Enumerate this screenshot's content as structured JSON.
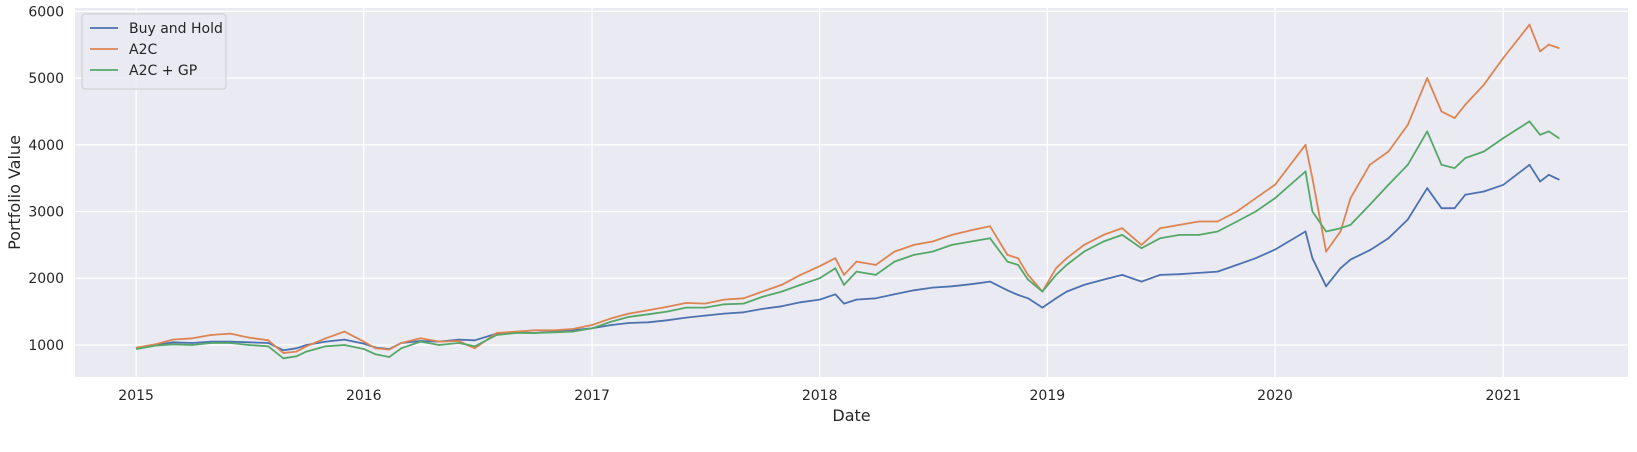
{
  "chart_data": {
    "type": "line",
    "title": "",
    "xlabel": "Date",
    "ylabel": "Portfolio Value",
    "x_axis_type": "date",
    "xlim": [
      "2014-09-25",
      "2021-07-20"
    ],
    "ylim": [
      520,
      6050
    ],
    "x_ticks": [
      {
        "date": "2015-01-01",
        "label": "2015"
      },
      {
        "date": "2016-01-01",
        "label": "2016"
      },
      {
        "date": "2017-01-01",
        "label": "2017"
      },
      {
        "date": "2018-01-01",
        "label": "2018"
      },
      {
        "date": "2019-01-01",
        "label": "2019"
      },
      {
        "date": "2020-01-01",
        "label": "2020"
      },
      {
        "date": "2021-01-01",
        "label": "2021"
      }
    ],
    "y_ticks": [
      {
        "value": 1000,
        "label": "1000"
      },
      {
        "value": 2000,
        "label": "2000"
      },
      {
        "value": 3000,
        "label": "3000"
      },
      {
        "value": 4000,
        "label": "4000"
      },
      {
        "value": 5000,
        "label": "5000"
      },
      {
        "value": 6000,
        "label": "6000"
      }
    ],
    "grid": true,
    "style": "seaborn-darkgrid",
    "background_color": "#EAEAF2",
    "grid_color": "#FFFFFF",
    "legend_position": "upper-left",
    "x": [
      "2015-01-02",
      "2015-02-01",
      "2015-03-01",
      "2015-04-01",
      "2015-05-01",
      "2015-06-01",
      "2015-07-01",
      "2015-08-01",
      "2015-08-25",
      "2015-09-15",
      "2015-10-01",
      "2015-11-01",
      "2015-12-01",
      "2016-01-01",
      "2016-01-20",
      "2016-02-11",
      "2016-03-01",
      "2016-04-01",
      "2016-05-01",
      "2016-06-01",
      "2016-06-27",
      "2016-08-01",
      "2016-09-01",
      "2016-10-01",
      "2016-11-01",
      "2016-12-01",
      "2017-01-01",
      "2017-02-01",
      "2017-03-01",
      "2017-04-01",
      "2017-05-01",
      "2017-06-01",
      "2017-07-01",
      "2017-08-01",
      "2017-09-01",
      "2017-10-01",
      "2017-11-01",
      "2017-12-01",
      "2018-01-01",
      "2018-01-26",
      "2018-02-09",
      "2018-03-01",
      "2018-04-01",
      "2018-05-01",
      "2018-06-01",
      "2018-07-01",
      "2018-08-01",
      "2018-09-01",
      "2018-10-01",
      "2018-10-29",
      "2018-11-15",
      "2018-12-01",
      "2018-12-24",
      "2019-01-15",
      "2019-02-01",
      "2019-03-01",
      "2019-04-01",
      "2019-05-01",
      "2019-06-01",
      "2019-07-01",
      "2019-08-01",
      "2019-09-01",
      "2019-10-01",
      "2019-11-01",
      "2019-12-01",
      "2020-01-01",
      "2020-02-19",
      "2020-03-01",
      "2020-03-23",
      "2020-04-15",
      "2020-05-01",
      "2020-06-01",
      "2020-07-01",
      "2020-08-01",
      "2020-09-01",
      "2020-09-24",
      "2020-10-15",
      "2020-11-01",
      "2020-12-01",
      "2021-01-01",
      "2021-02-12",
      "2021-03-01",
      "2021-03-15",
      "2021-03-31"
    ],
    "series": [
      {
        "name": "Buy and Hold",
        "color": "#4C72B0",
        "values": [
          960,
          1000,
          1040,
          1030,
          1050,
          1050,
          1040,
          1030,
          920,
          950,
          1000,
          1050,
          1080,
          1020,
          960,
          940,
          1030,
          1060,
          1050,
          1080,
          1070,
          1170,
          1190,
          1180,
          1200,
          1220,
          1250,
          1300,
          1330,
          1340,
          1370,
          1410,
          1440,
          1470,
          1490,
          1540,
          1580,
          1640,
          1680,
          1760,
          1620,
          1680,
          1700,
          1760,
          1820,
          1860,
          1880,
          1910,
          1950,
          1820,
          1750,
          1700,
          1560,
          1700,
          1800,
          1900,
          1980,
          2050,
          1950,
          2050,
          2060,
          2080,
          2100,
          2200,
          2300,
          2430,
          2700,
          2300,
          1880,
          2150,
          2280,
          2420,
          2600,
          2880,
          3350,
          3050,
          3050,
          3250,
          3300,
          3400,
          3700,
          3450,
          3550,
          3480
        ]
      },
      {
        "name": "A2C",
        "color": "#DD8452",
        "values": [
          960,
          1010,
          1080,
          1100,
          1150,
          1170,
          1110,
          1070,
          880,
          900,
          980,
          1100,
          1200,
          1050,
          950,
          930,
          1030,
          1100,
          1050,
          1060,
          950,
          1180,
          1200,
          1220,
          1220,
          1240,
          1300,
          1400,
          1470,
          1520,
          1570,
          1630,
          1620,
          1680,
          1700,
          1800,
          1900,
          2050,
          2180,
          2300,
          2050,
          2250,
          2200,
          2400,
          2500,
          2550,
          2650,
          2720,
          2780,
          2350,
          2300,
          2050,
          1800,
          2150,
          2300,
          2500,
          2650,
          2750,
          2500,
          2750,
          2800,
          2850,
          2850,
          3000,
          3200,
          3400,
          4000,
          3500,
          2400,
          2700,
          3200,
          3700,
          3900,
          4300,
          5000,
          4500,
          4400,
          4600,
          4900,
          5300,
          5800,
          5400,
          5500,
          5450
        ]
      },
      {
        "name": "A2C + GP",
        "color": "#55A868",
        "values": [
          940,
          990,
          1010,
          1000,
          1030,
          1030,
          1000,
          980,
          800,
          830,
          900,
          980,
          1000,
          940,
          860,
          820,
          950,
          1050,
          1000,
          1030,
          980,
          1150,
          1180,
          1180,
          1190,
          1200,
          1250,
          1350,
          1420,
          1460,
          1500,
          1560,
          1560,
          1610,
          1620,
          1720,
          1800,
          1900,
          2000,
          2150,
          1900,
          2100,
          2050,
          2250,
          2350,
          2400,
          2500,
          2550,
          2600,
          2250,
          2200,
          1980,
          1800,
          2050,
          2200,
          2400,
          2550,
          2650,
          2450,
          2600,
          2650,
          2650,
          2700,
          2850,
          3000,
          3200,
          3600,
          3000,
          2700,
          2750,
          2800,
          3100,
          3400,
          3700,
          4200,
          3700,
          3650,
          3800,
          3900,
          4100,
          4350,
          4150,
          4200,
          4100
        ]
      }
    ]
  }
}
